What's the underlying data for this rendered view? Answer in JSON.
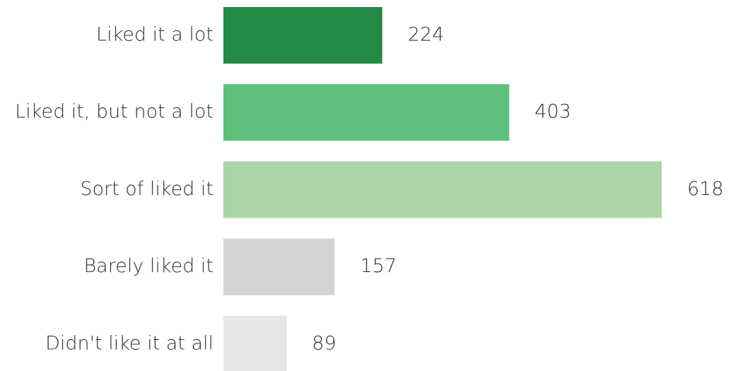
{
  "chart_data": {
    "type": "bar",
    "orientation": "horizontal",
    "categories": [
      "Liked it a lot",
      "Liked it, but not a lot",
      "Sort of liked it",
      "Barely liked it",
      "Didn't like it at all"
    ],
    "values": [
      224,
      403,
      618,
      157,
      89
    ],
    "colors": [
      "#238b45",
      "#5ec07b",
      "#aad5a8",
      "#d4d4d4",
      "#e6e6e6"
    ]
  }
}
